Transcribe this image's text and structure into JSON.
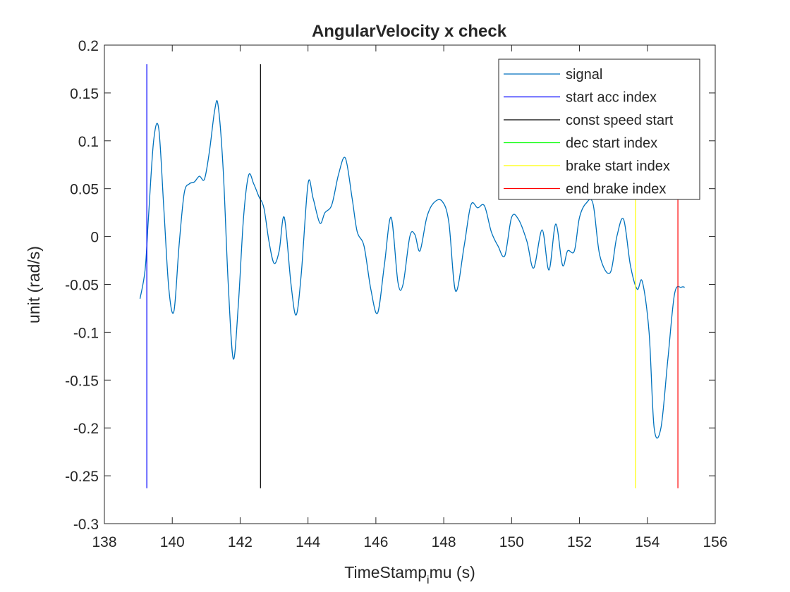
{
  "chart_data": {
    "type": "line",
    "title": "AngularVelocity x check",
    "xlabel_main": "TimeStamp",
    "xlabel_sub": "i",
    "xlabel_tail": "mu (s)",
    "ylabel": "unit (rad/s)",
    "xlim": [
      138,
      156
    ],
    "ylim": [
      -0.3,
      0.2
    ],
    "xticks": [
      138,
      140,
      142,
      144,
      146,
      148,
      150,
      152,
      154,
      156
    ],
    "xtick_labels": [
      "138",
      "140",
      "142",
      "144",
      "146",
      "148",
      "150",
      "152",
      "154",
      "156"
    ],
    "yticks": [
      -0.3,
      -0.25,
      -0.2,
      -0.15,
      -0.1,
      -0.05,
      0,
      0.05,
      0.1,
      0.15,
      0.2
    ],
    "ytick_labels": [
      "-0.3",
      "-0.25",
      "-0.2",
      "-0.15",
      "-0.1",
      "-0.05",
      "0",
      "0.05",
      "0.1",
      "0.15",
      "0.2"
    ],
    "grid": false,
    "legend_position": "top-right",
    "series": [
      {
        "name": "signal",
        "color": "#0072BD",
        "x": [
          139.05,
          139.2,
          139.3,
          139.45,
          139.6,
          139.75,
          139.9,
          140.05,
          140.2,
          140.35,
          140.5,
          140.65,
          140.8,
          140.95,
          141.1,
          141.25,
          141.35,
          141.5,
          141.65,
          141.8,
          141.95,
          142.1,
          142.25,
          142.4,
          142.55,
          142.7,
          142.85,
          143.0,
          143.15,
          143.3,
          143.5,
          143.65,
          143.8,
          144.0,
          144.15,
          144.35,
          144.5,
          144.7,
          144.9,
          145.1,
          145.3,
          145.45,
          145.65,
          145.85,
          146.05,
          146.25,
          146.45,
          146.65,
          146.8,
          147.0,
          147.15,
          147.3,
          147.5,
          147.7,
          147.95,
          148.15,
          148.35,
          148.6,
          148.8,
          149.0,
          149.2,
          149.4,
          149.6,
          149.8,
          150.0,
          150.2,
          150.45,
          150.65,
          150.9,
          151.1,
          151.3,
          151.5,
          151.65,
          151.85,
          152.0,
          152.2,
          152.4,
          152.6,
          152.9,
          153.1,
          153.3,
          153.5,
          153.7,
          153.85,
          154.05,
          154.2,
          154.4,
          154.6,
          154.8,
          155.0,
          155.1
        ],
        "values": [
          -0.065,
          -0.035,
          0.02,
          0.1,
          0.113,
          0.03,
          -0.055,
          -0.078,
          -0.01,
          0.045,
          0.055,
          0.057,
          0.063,
          0.06,
          0.09,
          0.132,
          0.137,
          0.07,
          -0.05,
          -0.128,
          -0.07,
          0.02,
          0.064,
          0.055,
          0.042,
          0.03,
          -0.005,
          -0.028,
          -0.015,
          0.02,
          -0.05,
          -0.082,
          -0.04,
          0.055,
          0.04,
          0.014,
          0.025,
          0.033,
          0.065,
          0.082,
          0.04,
          0.005,
          -0.01,
          -0.055,
          -0.08,
          -0.03,
          0.02,
          -0.048,
          -0.05,
          0.0,
          0.002,
          -0.015,
          0.02,
          0.035,
          0.037,
          0.015,
          -0.057,
          -0.01,
          0.033,
          0.03,
          0.032,
          0.005,
          -0.01,
          -0.02,
          0.02,
          0.018,
          -0.005,
          -0.033,
          0.007,
          -0.035,
          0.013,
          -0.03,
          -0.015,
          -0.015,
          0.02,
          0.035,
          0.034,
          -0.02,
          -0.038,
          0.0,
          0.018,
          -0.03,
          -0.055,
          -0.047,
          -0.1,
          -0.2,
          -0.2,
          -0.13,
          -0.06,
          -0.053,
          -0.053
        ]
      }
    ],
    "markers": [
      {
        "name": "start acc index",
        "color": "#0000FF",
        "x": 139.25,
        "y_range": [
          -0.263,
          0.18
        ]
      },
      {
        "name": "const speed start",
        "color": "#000000",
        "x": 142.6,
        "y_range": [
          -0.263,
          0.18
        ]
      },
      {
        "name": "dec start index",
        "color": "#00FF00",
        "x": null,
        "y_range": null
      },
      {
        "name": "brake start index",
        "color": "#FFFF00",
        "x": 153.65,
        "y_range": [
          -0.263,
          0.04
        ]
      },
      {
        "name": "end brake index",
        "color": "#FF0000",
        "x": 154.9,
        "y_range": [
          -0.263,
          0.04
        ]
      }
    ]
  }
}
